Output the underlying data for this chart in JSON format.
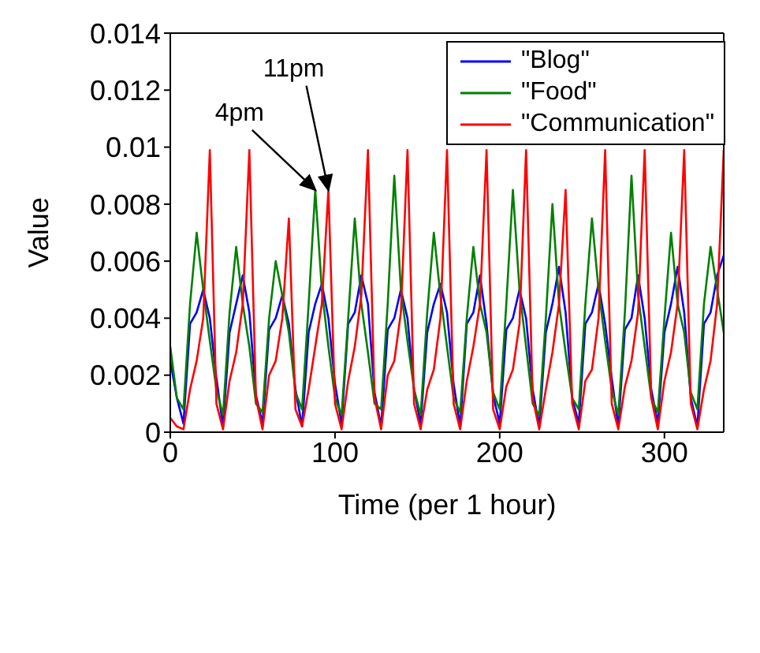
{
  "chart_data": {
    "type": "line",
    "xlabel": "Time (per 1 hour)",
    "ylabel": "Value",
    "x": [
      0,
      4,
      8,
      12,
      16,
      20,
      24,
      28,
      32,
      36,
      40,
      44,
      48,
      52,
      56,
      60,
      64,
      68,
      72,
      76,
      80,
      84,
      88,
      92,
      96,
      100,
      104,
      108,
      112,
      116,
      120,
      124,
      128,
      132,
      136,
      140,
      144,
      148,
      152,
      156,
      160,
      164,
      168,
      172,
      176,
      180,
      184,
      188,
      192,
      196,
      200,
      204,
      208,
      212,
      216,
      220,
      224,
      228,
      232,
      236,
      240,
      244,
      248,
      252,
      256,
      260,
      264,
      268,
      272,
      276,
      280,
      284,
      288,
      292,
      296,
      300,
      304,
      308,
      312,
      316,
      320,
      324,
      328,
      332,
      336
    ],
    "xlim": [
      0,
      336
    ],
    "xticks": [
      0,
      100,
      200,
      300
    ],
    "ylim": [
      0,
      0.014
    ],
    "yticks": [
      0,
      0.002,
      0.004,
      0.006,
      0.008,
      0.01,
      0.012,
      0.014
    ],
    "grid": false,
    "legend": "top right",
    "marker": "none",
    "line_style": "solid",
    "annotations": [
      {
        "text": "4pm",
        "x": 88,
        "y": 0.0085
      },
      {
        "text": "11pm",
        "x": 96,
        "y": 0.0085
      }
    ],
    "series": [
      {
        "name": "\"Blog\"",
        "color": "#0000ff",
        "values": [
          0.0025,
          0.0012,
          0.0003,
          0.0038,
          0.0042,
          0.005,
          0.004,
          0.0019,
          0.0002,
          0.0035,
          0.0045,
          0.0055,
          0.0042,
          0.0013,
          0.0003,
          0.0036,
          0.004,
          0.0048,
          0.0038,
          0.0015,
          0.0002,
          0.0035,
          0.0045,
          0.0052,
          0.004,
          0.0017,
          0.0003,
          0.0038,
          0.0042,
          0.0055,
          0.0045,
          0.0014,
          0.0002,
          0.0036,
          0.004,
          0.005,
          0.004,
          0.0015,
          0.0003,
          0.0035,
          0.0045,
          0.0052,
          0.0042,
          0.0017,
          0.0002,
          0.0038,
          0.0042,
          0.0055,
          0.0038,
          0.0013,
          0.0003,
          0.0036,
          0.004,
          0.005,
          0.004,
          0.0015,
          0.0002,
          0.0035,
          0.0045,
          0.0058,
          0.0042,
          0.0012,
          0.0003,
          0.0038,
          0.0042,
          0.0052,
          0.0038,
          0.0019,
          0.0002,
          0.0036,
          0.004,
          0.0055,
          0.004,
          0.0015,
          0.0003,
          0.0035,
          0.0045,
          0.0058,
          0.0042,
          0.0012,
          0.0002,
          0.0038,
          0.0042,
          0.0055,
          0.0062
        ]
      },
      {
        "name": "\"Food\"",
        "color": "#008000",
        "values": [
          0.003,
          0.0012,
          0.0008,
          0.0045,
          0.007,
          0.005,
          0.0032,
          0.0015,
          0.0006,
          0.0042,
          0.0065,
          0.0045,
          0.003,
          0.001,
          0.0007,
          0.004,
          0.006,
          0.0048,
          0.0035,
          0.0014,
          0.0008,
          0.0045,
          0.0085,
          0.005,
          0.003,
          0.0012,
          0.0006,
          0.004,
          0.0075,
          0.0045,
          0.0028,
          0.001,
          0.0008,
          0.0045,
          0.009,
          0.005,
          0.0032,
          0.0015,
          0.0006,
          0.0042,
          0.007,
          0.0048,
          0.003,
          0.0012,
          0.0007,
          0.004,
          0.0065,
          0.0045,
          0.0035,
          0.0014,
          0.0008,
          0.0045,
          0.0085,
          0.005,
          0.003,
          0.001,
          0.0006,
          0.004,
          0.008,
          0.0045,
          0.0028,
          0.0012,
          0.0008,
          0.0045,
          0.0075,
          0.005,
          0.0032,
          0.0015,
          0.0006,
          0.0042,
          0.009,
          0.0048,
          0.003,
          0.0012,
          0.0007,
          0.004,
          0.007,
          0.0045,
          0.0035,
          0.0014,
          0.0008,
          0.0045,
          0.0065,
          0.005,
          0.0035
        ]
      },
      {
        "name": "\"Communication\"",
        "color": "#ff0000",
        "values": [
          0.0005,
          0.0002,
          0.0001,
          0.0015,
          0.0025,
          0.004,
          0.0099,
          0.001,
          0.0001,
          0.0018,
          0.0028,
          0.0045,
          0.0099,
          0.0012,
          0.0001,
          0.002,
          0.0025,
          0.004,
          0.0075,
          0.0008,
          0.0002,
          0.0015,
          0.003,
          0.0045,
          0.0085,
          0.001,
          0.0001,
          0.0018,
          0.003,
          0.0048,
          0.0099,
          0.0012,
          0.0001,
          0.002,
          0.0025,
          0.0042,
          0.0099,
          0.001,
          0.0001,
          0.0015,
          0.0022,
          0.004,
          0.0099,
          0.001,
          0.0001,
          0.0018,
          0.003,
          0.0045,
          0.0099,
          0.0008,
          0.0001,
          0.0016,
          0.0022,
          0.0038,
          0.0099,
          0.0012,
          0.0001,
          0.0015,
          0.0028,
          0.0045,
          0.0085,
          0.001,
          0.0001,
          0.0018,
          0.0022,
          0.004,
          0.0099,
          0.001,
          0.0001,
          0.0016,
          0.0025,
          0.0042,
          0.0099,
          0.0012,
          0.0001,
          0.0018,
          0.0028,
          0.0045,
          0.0099,
          0.001,
          0.0001,
          0.0015,
          0.0025,
          0.0045,
          0.0099
        ]
      }
    ]
  }
}
